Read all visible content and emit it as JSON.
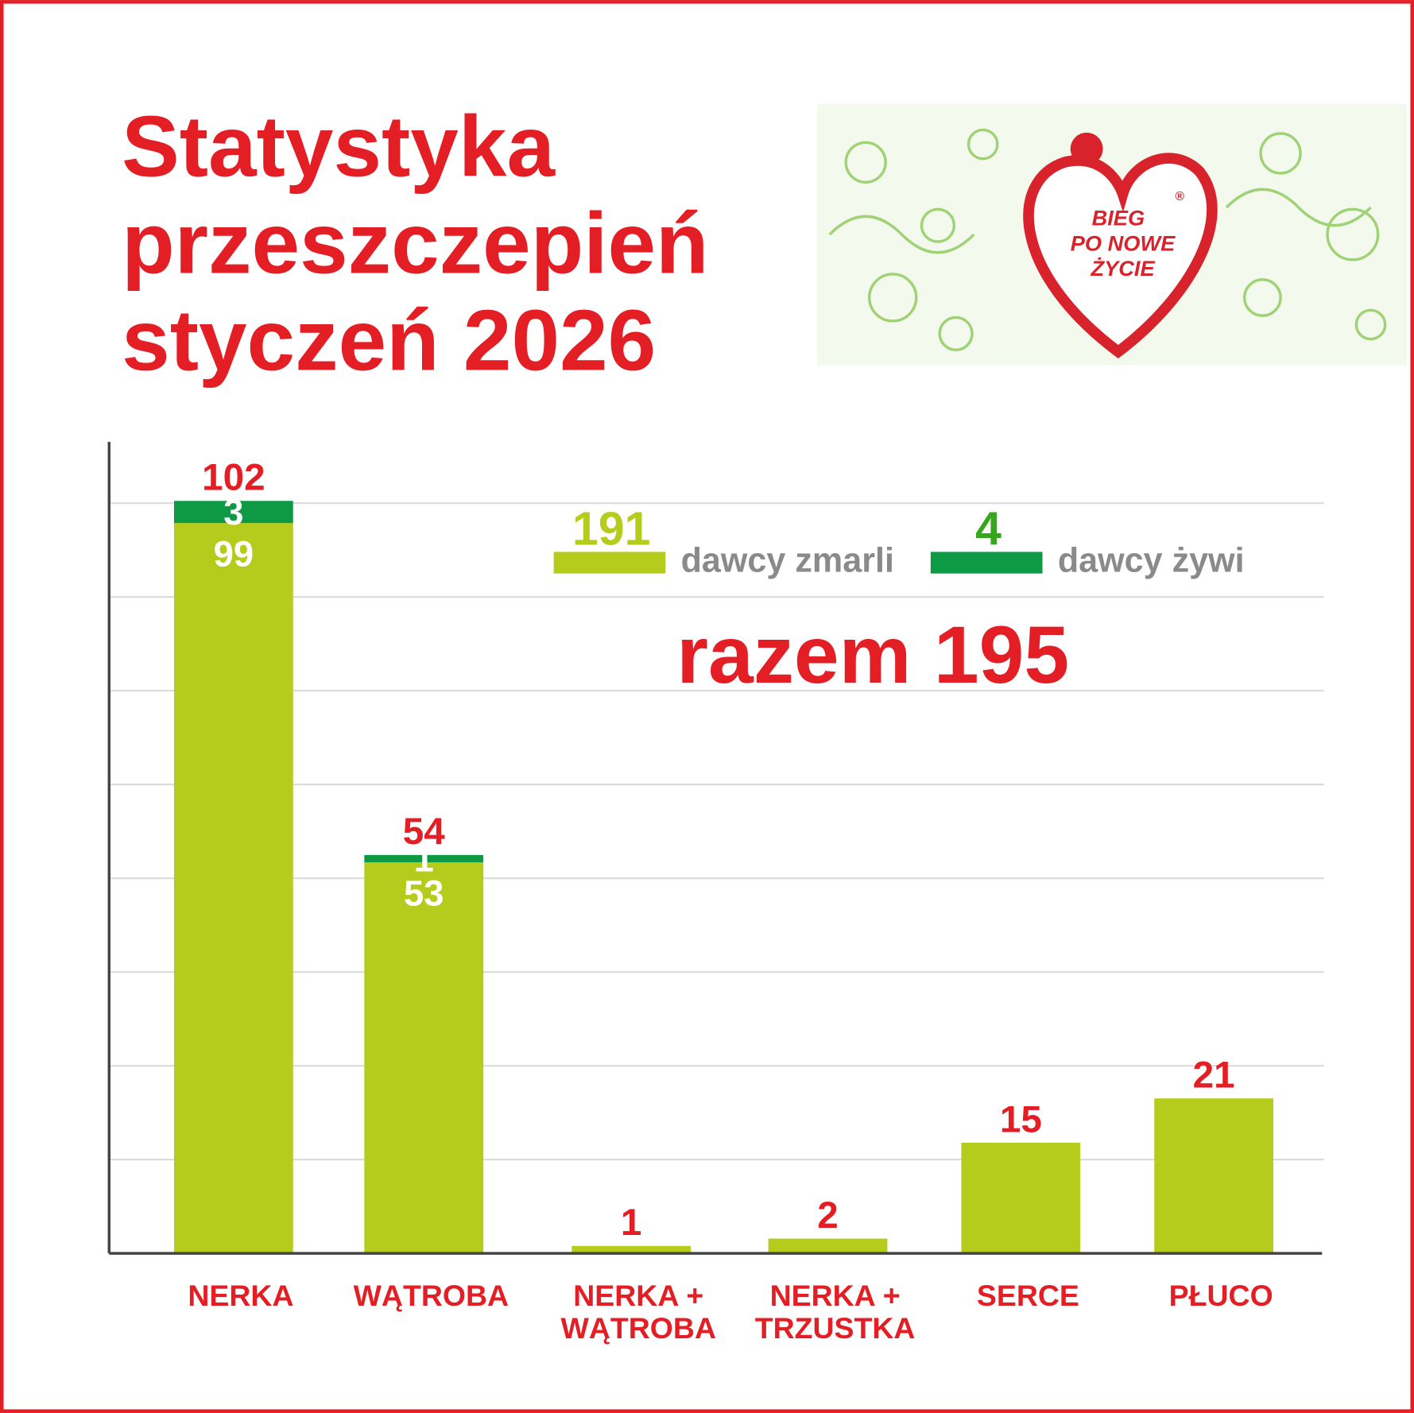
{
  "chart_data": {
    "type": "stacked-bar",
    "title": "Statystyka\nprzeszczepień\nstyczeń 2026",
    "logo": {
      "lines": [
        "BIEG",
        "PO NOWE",
        "ŻYCIE"
      ],
      "mark": "®"
    },
    "categories": [
      "NERKA",
      "WĄTROBA",
      "NERKA +\nWĄTROBA",
      "NERKA +\nTRZUSTKA",
      "SERCE",
      "PŁUCO"
    ],
    "series": [
      {
        "name": "dawcy zmarli",
        "color": "#b5cc1d",
        "label_color": "#b5cc1d",
        "total": 191,
        "values": [
          99,
          53,
          1,
          2,
          15,
          21
        ]
      },
      {
        "name": "dawcy żywi",
        "color": "#0e9a45",
        "label_color": "#36a61c",
        "total": 4,
        "values": [
          3,
          1,
          0,
          0,
          0,
          0
        ]
      }
    ],
    "totals": [
      102,
      54,
      1,
      2,
      15,
      21
    ],
    "grand_total_label": "razem",
    "grand_total": 195,
    "ylim": [
      0,
      110
    ]
  }
}
